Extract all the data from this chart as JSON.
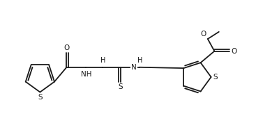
{
  "bg_color": "#ffffff",
  "line_color": "#1a1a1a",
  "line_width": 1.3,
  "font_size": 7.5,
  "figsize": [
    3.67,
    1.77
  ],
  "dpi": 100,
  "xlim": [
    0,
    11.0
  ],
  "ylim": [
    0.0,
    5.5
  ]
}
